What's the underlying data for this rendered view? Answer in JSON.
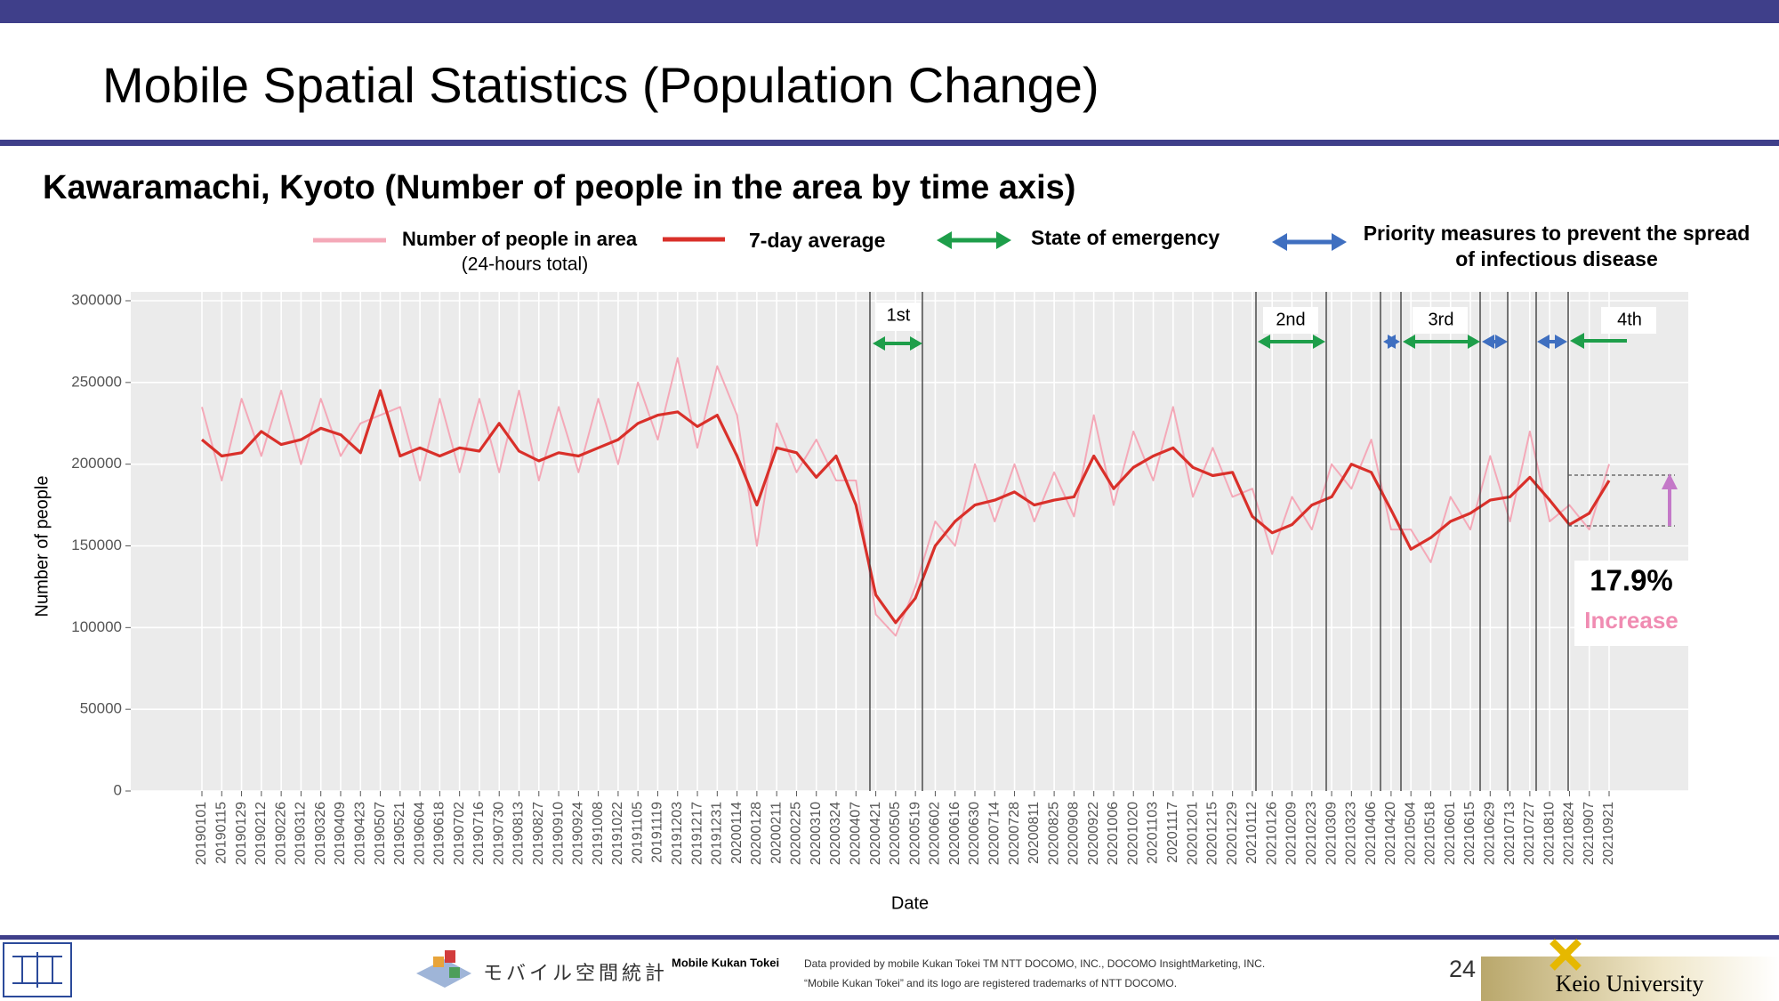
{
  "slide": {
    "header": "Mobile Spatial Statistics (Population Change)",
    "page_number": "24",
    "footer": {
      "logo_text": "モバイル空間統計",
      "brand": "Mobile Kukan Tokei",
      "credit": "Data provided by mobile Kukan Tokei TM NTT DOCOMO, INC., DOCOMO InsightMarketing, INC.",
      "trademark": "“Mobile Kukan Tokei” and its logo are registered trademarks of NTT DOCOMO.",
      "university": "Keio University"
    }
  },
  "chart_data": {
    "type": "line",
    "title": "Kawaramachi, Kyoto (Number of people in the area by time axis)",
    "x_label": "Date",
    "y_label": "Number of people",
    "x": [
      "20190101",
      "20190115",
      "20190129",
      "20190212",
      "20190226",
      "20190312",
      "20190326",
      "20190409",
      "20190423",
      "20190507",
      "20190521",
      "20190604",
      "20190618",
      "20190702",
      "20190716",
      "20190730",
      "20190813",
      "20190827",
      "20190910",
      "20190924",
      "20191008",
      "20191022",
      "20191105",
      "20191119",
      "20191203",
      "20191217",
      "20191231",
      "20200114",
      "20200128",
      "20200211",
      "20200225",
      "20200310",
      "20200324",
      "20200407",
      "20200421",
      "20200505",
      "20200519",
      "20200602",
      "20200616",
      "20200630",
      "20200714",
      "20200728",
      "20200811",
      "20200825",
      "20200908",
      "20200922",
      "20201006",
      "20201020",
      "20201103",
      "20201117",
      "20201201",
      "20201215",
      "20201229",
      "20210112",
      "20210126",
      "20210209",
      "20210223",
      "20210309",
      "20210323",
      "20210406",
      "20210420",
      "20210504",
      "20210518",
      "20210601",
      "20210615",
      "20210629",
      "20210713",
      "20210727",
      "20210810",
      "20210824",
      "20210907",
      "20210921"
    ],
    "series": [
      {
        "name": "Number of people in area",
        "note": "(24-hours total)",
        "color": "#f4a9b8",
        "values": [
          235000,
          190000,
          240000,
          205000,
          245000,
          200000,
          240000,
          205000,
          225000,
          230000,
          235000,
          190000,
          240000,
          195000,
          240000,
          195000,
          245000,
          190000,
          235000,
          195000,
          240000,
          200000,
          250000,
          215000,
          265000,
          210000,
          260000,
          230000,
          150000,
          225000,
          195000,
          215000,
          190000,
          190000,
          108000,
          95000,
          125000,
          165000,
          150000,
          200000,
          165000,
          200000,
          165000,
          195000,
          168000,
          230000,
          175000,
          220000,
          190000,
          235000,
          180000,
          210000,
          180000,
          185000,
          145000,
          180000,
          160000,
          200000,
          185000,
          215000,
          160000,
          160000,
          140000,
          180000,
          160000,
          205000,
          165000,
          220000,
          165000,
          175000,
          160000,
          200000
        ]
      },
      {
        "name": "7-day average",
        "color": "#d9302a",
        "values": [
          215000,
          205000,
          207000,
          220000,
          212000,
          215000,
          222000,
          218000,
          207000,
          245000,
          205000,
          210000,
          205000,
          210000,
          208000,
          225000,
          208000,
          202000,
          207000,
          205000,
          210000,
          215000,
          225000,
          230000,
          232000,
          223000,
          230000,
          205000,
          175000,
          210000,
          207000,
          192000,
          205000,
          175000,
          120000,
          103000,
          118000,
          150000,
          165000,
          175000,
          178000,
          183000,
          175000,
          178000,
          180000,
          205000,
          185000,
          198000,
          205000,
          210000,
          198000,
          193000,
          195000,
          168000,
          158000,
          163000,
          175000,
          180000,
          200000,
          195000,
          172000,
          148000,
          155000,
          165000,
          170000,
          178000,
          180000,
          192000,
          178000,
          163000,
          170000,
          190000
        ]
      }
    ],
    "legend_extra": [
      {
        "name": "State of emergency",
        "color": "#1e9e4a"
      },
      {
        "name": "Priority measures to prevent the spread of infectious disease",
        "color": "#3f6fc0"
      }
    ],
    "periods": [
      "1st",
      "2nd",
      "3rd",
      "4th"
    ],
    "annotation": {
      "value": "17.9%",
      "label": "Increase"
    },
    "ylim": [
      0,
      300000
    ],
    "yticks": [
      0,
      50000,
      100000,
      150000,
      200000,
      250000,
      300000
    ],
    "grid": true
  }
}
